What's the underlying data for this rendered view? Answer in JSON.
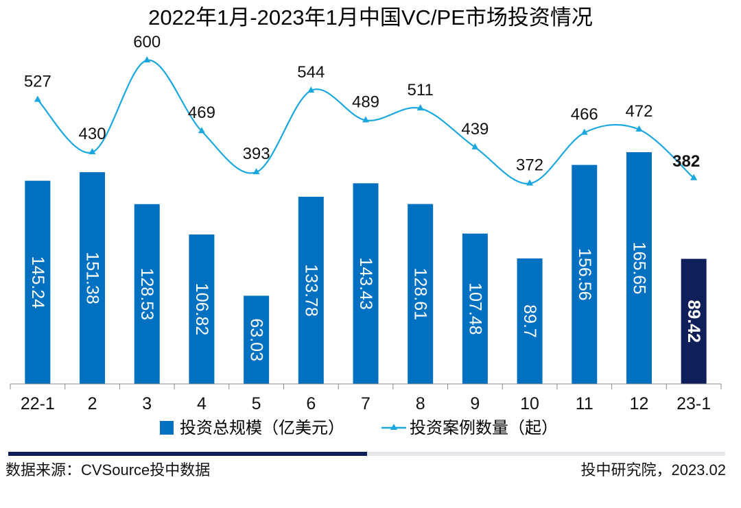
{
  "chart_data": {
    "type": "bar+line",
    "title": "2022年1月-2023年1月中国VC/PE市场投资情况",
    "categories": [
      "22-1",
      "2",
      "3",
      "4",
      "5",
      "6",
      "7",
      "8",
      "9",
      "10",
      "11",
      "12",
      "23-1"
    ],
    "series": [
      {
        "name": "投资总规模（亿美元）",
        "type": "bar",
        "values": [
          145.24,
          151.38,
          128.53,
          106.82,
          63.03,
          133.78,
          143.43,
          128.61,
          107.48,
          89.7,
          156.56,
          165.65,
          89.42
        ],
        "labels": [
          "145.24",
          "151.38",
          "128.53",
          "106.82",
          "63.03",
          "133.78",
          "143.43",
          "128.61",
          "107.48",
          "89.7",
          "156.56",
          "165.65",
          "89.42"
        ],
        "color": "#0070c0",
        "highlight_last_color": "#0f1f5a"
      },
      {
        "name": "投资案例数量（起）",
        "type": "line",
        "values": [
          527,
          430,
          600,
          469,
          393,
          544,
          489,
          511,
          439,
          372,
          466,
          472,
          382
        ],
        "labels": [
          "527",
          "430",
          "600",
          "469",
          "393",
          "544",
          "489",
          "511",
          "439",
          "372",
          "466",
          "472",
          "382"
        ],
        "color": "#1aa7e0",
        "smooth": true,
        "marker": "triangle"
      }
    ],
    "legend_position": "bottom",
    "grid": false
  },
  "footer": {
    "source": "数据来源：CVSource投中数据",
    "org": "投中研究院，2023.02"
  },
  "colors": {
    "bar": "#0070c0",
    "bar_highlight": "#0f1f5a",
    "line": "#1aa7e0",
    "axis": "#888888",
    "footer_bar_dark": "#0f1f5a",
    "footer_bar_light": "#e6e7ea"
  }
}
